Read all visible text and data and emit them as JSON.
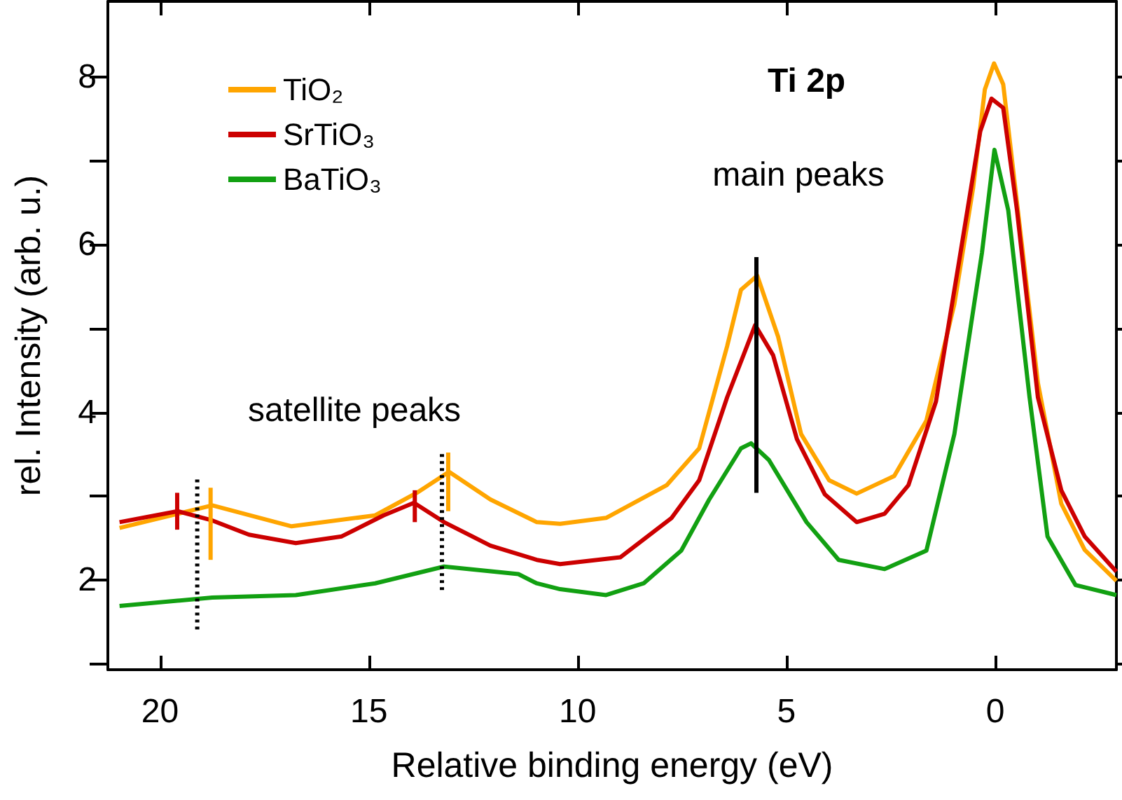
{
  "chart_data": {
    "type": "line",
    "title": "Ti 2p",
    "xlabel": "Relative binding energy (eV)",
    "ylabel": "rel. Intensity (arb. u.)",
    "xlim": [
      21.25,
      -2.9
    ],
    "xticks": [
      20,
      15,
      10,
      5,
      0
    ],
    "ylim": [
      0.93,
      8.9
    ],
    "yticks": [
      {
        "value": 1,
        "label": null
      },
      2,
      {
        "value": 3,
        "label": null
      },
      4,
      {
        "value": 5,
        "label": null
      },
      6,
      {
        "value": 7,
        "label": null
      },
      8
    ],
    "grid": false,
    "legend": "top left",
    "marker": "none",
    "line_style": "solid",
    "annotations": [
      "main peaks",
      "satellite peaks"
    ],
    "series": [
      {
        "name": "TiO₂",
        "color": "#ffa500",
        "x": [
          20.97,
          18.75,
          16.85,
          14.85,
          13.85,
          13.08,
          12.09,
          10.98,
          10.42,
          9.32,
          7.87,
          7.09,
          6.42,
          6.09,
          5.7,
          5.2,
          4.65,
          3.98,
          3.32,
          2.42,
          1.65,
          0.98,
          0.53,
          0.25,
          0.03,
          -0.19,
          -0.58,
          -1.02,
          -1.58,
          -2.14,
          -2.9
        ],
        "values": [
          2.62,
          2.89,
          2.64,
          2.77,
          3.04,
          3.29,
          2.96,
          2.69,
          2.67,
          2.74,
          3.13,
          3.57,
          4.79,
          5.46,
          5.63,
          4.9,
          3.74,
          3.19,
          3.03,
          3.24,
          3.9,
          5.29,
          6.68,
          7.85,
          8.16,
          7.91,
          6.24,
          4.35,
          2.91,
          2.36,
          1.99
        ]
      },
      {
        "name": "SrTiO₃",
        "color": "#cc0000",
        "x": [
          20.97,
          19.58,
          18.75,
          17.87,
          16.75,
          15.65,
          14.65,
          13.92,
          13.2,
          12.09,
          10.98,
          10.42,
          8.98,
          7.75,
          7.09,
          6.42,
          5.75,
          5.32,
          4.75,
          4.08,
          3.32,
          2.65,
          2.08,
          1.42,
          0.87,
          0.36,
          0.09,
          -0.19,
          -0.52,
          -1.02,
          -1.58,
          -2.14,
          -2.9
        ],
        "values": [
          2.69,
          2.82,
          2.71,
          2.54,
          2.44,
          2.52,
          2.77,
          2.92,
          2.69,
          2.41,
          2.24,
          2.19,
          2.27,
          2.74,
          3.19,
          4.18,
          5.04,
          4.68,
          3.68,
          3.02,
          2.69,
          2.79,
          3.13,
          4.13,
          5.79,
          7.35,
          7.74,
          7.63,
          6.41,
          4.18,
          3.07,
          2.52,
          2.1
        ]
      },
      {
        "name": "BaTiO₃",
        "color": "#12a012",
        "x": [
          20.97,
          18.75,
          16.75,
          14.85,
          13.2,
          11.42,
          10.98,
          10.42,
          9.32,
          8.42,
          7.52,
          6.85,
          6.09,
          5.85,
          5.42,
          4.52,
          3.75,
          2.65,
          1.65,
          0.98,
          0.32,
          0.02,
          -0.31,
          -0.82,
          -1.25,
          -1.92,
          -2.9
        ],
        "values": [
          1.69,
          1.79,
          1.82,
          1.96,
          2.16,
          2.07,
          1.96,
          1.89,
          1.82,
          1.96,
          2.35,
          2.96,
          3.57,
          3.63,
          3.43,
          2.69,
          2.24,
          2.13,
          2.35,
          3.74,
          5.9,
          7.13,
          6.41,
          4.18,
          2.52,
          1.94,
          1.82
        ]
      },
      {
        "color": "#000000",
        "x": [
          5.72,
          5.72
        ],
        "values": [
          3.04,
          5.85
        ]
      },
      {
        "color": "#000000",
        "line_style": "dotted",
        "x": [
          19.11,
          19.11
        ],
        "values": [
          1.41,
          3.21
        ]
      },
      {
        "color": "#000000",
        "line_style": "dotted",
        "x": [
          13.25,
          13.25
        ],
        "values": [
          1.88,
          3.52
        ]
      },
      {
        "color": "#cc0000",
        "x": [
          19.59,
          19.59
        ],
        "values": [
          2.6,
          3.04
        ]
      },
      {
        "color": "#ffa500",
        "x": [
          18.79,
          18.79
        ],
        "values": [
          2.24,
          3.1
        ]
      },
      {
        "color": "#cc0000",
        "x": [
          13.9,
          13.9
        ],
        "values": [
          2.69,
          3.07
        ]
      },
      {
        "color": "#ffa500",
        "x": [
          13.1,
          13.1
        ],
        "values": [
          2.82,
          3.52
        ]
      }
    ]
  }
}
